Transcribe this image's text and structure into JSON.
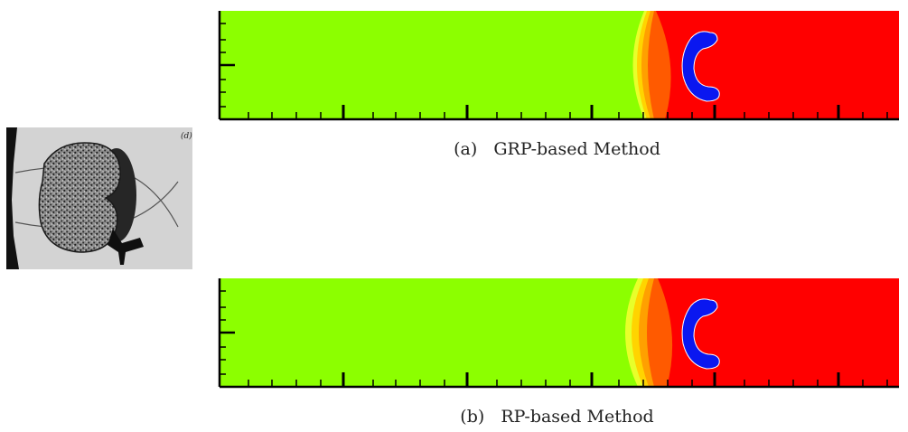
{
  "photo": {
    "label": "(d)"
  },
  "panels": [
    {
      "id": "a",
      "caption_label": "(a)",
      "caption_text": "GRP-based Method"
    },
    {
      "id": "b",
      "caption_label": "(b)",
      "caption_text": "RP-based Method"
    }
  ],
  "colors": {
    "left_state": "#8cff00",
    "right_state": "#ff0000",
    "bubble": "#0a17f0",
    "shock_band_1": "#e8ff2a",
    "shock_band_2": "#ffd400",
    "shock_band_3": "#ffa000",
    "shock_band_4": "#ff5a00"
  }
}
